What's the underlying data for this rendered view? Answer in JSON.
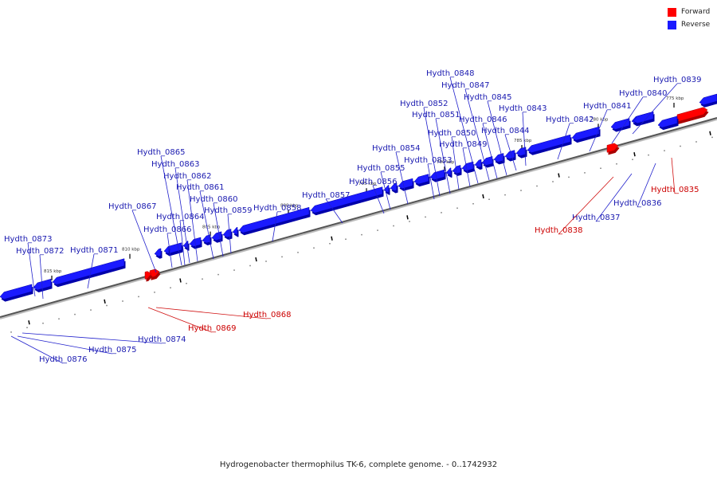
{
  "legend": {
    "forward": {
      "label": "Forward",
      "color": "#ff0000"
    },
    "reverse": {
      "label": "Reverse",
      "color": "#1a1aff"
    }
  },
  "footer": "Hydrogenobacter thermophilus TK-6, complete genome. - 0..1742932",
  "ticks": [
    "775 kbp",
    "780 kbp",
    "785 kbp",
    "790 kbp",
    "795 kbp",
    "800 kbp",
    "805 kbp",
    "810 kbp",
    "815 kbp"
  ],
  "genes": [
    {
      "name": "Hydth_0835",
      "strand": "forward"
    },
    {
      "name": "Hydth_0836",
      "strand": "reverse"
    },
    {
      "name": "Hydth_0837",
      "strand": "reverse"
    },
    {
      "name": "Hydth_0838",
      "strand": "forward"
    },
    {
      "name": "Hydth_0839",
      "strand": "reverse"
    },
    {
      "name": "Hydth_0840",
      "strand": "reverse"
    },
    {
      "name": "Hydth_0841",
      "strand": "reverse"
    },
    {
      "name": "Hydth_0842",
      "strand": "reverse"
    },
    {
      "name": "Hydth_0843",
      "strand": "reverse"
    },
    {
      "name": "Hydth_0844",
      "strand": "reverse"
    },
    {
      "name": "Hydth_0845",
      "strand": "reverse"
    },
    {
      "name": "Hydth_0846",
      "strand": "reverse"
    },
    {
      "name": "Hydth_0847",
      "strand": "reverse"
    },
    {
      "name": "Hydth_0848",
      "strand": "reverse"
    },
    {
      "name": "Hydth_0849",
      "strand": "reverse"
    },
    {
      "name": "Hydth_0850",
      "strand": "reverse"
    },
    {
      "name": "Hydth_0851",
      "strand": "reverse"
    },
    {
      "name": "Hydth_0852",
      "strand": "reverse"
    },
    {
      "name": "Hydth_0853",
      "strand": "reverse"
    },
    {
      "name": "Hydth_0854",
      "strand": "reverse"
    },
    {
      "name": "Hydth_0855",
      "strand": "reverse"
    },
    {
      "name": "Hydth_0856",
      "strand": "reverse"
    },
    {
      "name": "Hydth_0857",
      "strand": "reverse"
    },
    {
      "name": "Hydth_0858",
      "strand": "reverse"
    },
    {
      "name": "Hydth_0859",
      "strand": "reverse"
    },
    {
      "name": "Hydth_0860",
      "strand": "reverse"
    },
    {
      "name": "Hydth_0861",
      "strand": "reverse"
    },
    {
      "name": "Hydth_0862",
      "strand": "reverse"
    },
    {
      "name": "Hydth_0863",
      "strand": "reverse"
    },
    {
      "name": "Hydth_0864",
      "strand": "reverse"
    },
    {
      "name": "Hydth_0865",
      "strand": "reverse"
    },
    {
      "name": "Hydth_0866",
      "strand": "reverse"
    },
    {
      "name": "Hydth_0867",
      "strand": "reverse"
    },
    {
      "name": "Hydth_0868",
      "strand": "forward"
    },
    {
      "name": "Hydth_0869",
      "strand": "forward"
    },
    {
      "name": "Hydth_0871",
      "strand": "reverse"
    },
    {
      "name": "Hydth_0872",
      "strand": "reverse"
    },
    {
      "name": "Hydth_0873",
      "strand": "reverse"
    },
    {
      "name": "Hydth_0874",
      "strand": "reverse"
    },
    {
      "name": "Hydth_0875",
      "strand": "reverse"
    },
    {
      "name": "Hydth_0876",
      "strand": "reverse"
    }
  ]
}
